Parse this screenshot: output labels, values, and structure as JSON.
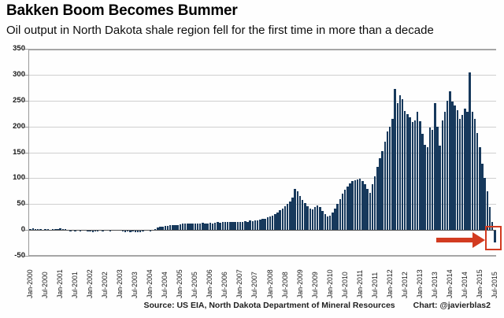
{
  "footer": {
    "source": "Source: US EIA, North Dakota Department of Mineral Resources",
    "credit": "Chart: @javierblas2"
  },
  "chart_data": {
    "type": "bar",
    "title": "Bakken Boom Becomes Bummer",
    "subtitle": "Oil output in North Dakota shale region fell for the first time in more than a decade",
    "xlabel": "",
    "ylabel": "",
    "ylim": [
      -50,
      350
    ],
    "y_ticks": [
      350,
      300,
      250,
      200,
      150,
      100,
      50,
      0,
      -50
    ],
    "grid": true,
    "legend": "none",
    "bar_color": "#17395c",
    "highlight_color": "#d23b20",
    "x_tick_labels": [
      "Jan-2000",
      "Jul-2000",
      "Jan-2001",
      "Jul-2001",
      "Jan-2002",
      "Jul-2002",
      "Jan-2003",
      "Jul-2003",
      "Jan-2004",
      "Jul-2004",
      "Jan-2005",
      "Jul-2005",
      "Jan-2006",
      "Jul-2006",
      "Jan-2007",
      "Jul-2007",
      "Jan-2008",
      "Jul-2008",
      "Jan-2009",
      "Jul-2009",
      "Jan-2010",
      "Jul-2010",
      "Jan-2011",
      "Jul-2011",
      "Jan-2012",
      "Jul-2012",
      "Jan-2013",
      "Jul-2013",
      "Jan-2014",
      "Jul-2014",
      "Jan-2015",
      "Jul-2015"
    ],
    "x_tick_every_n_months": 6,
    "series_by_year": [
      {
        "year": 2000,
        "values": [
          2,
          3,
          2,
          1,
          2,
          -1,
          1,
          2,
          -2,
          1,
          2,
          1
        ]
      },
      {
        "year": 2001,
        "values": [
          3,
          2,
          1,
          -2,
          -3,
          -2,
          -3,
          -2,
          -3,
          -2,
          -2,
          -3
        ]
      },
      {
        "year": 2002,
        "values": [
          -3,
          -4,
          -3,
          -3,
          -2,
          -3,
          -2,
          -2,
          -3,
          -2,
          -2,
          -2
        ]
      },
      {
        "year": 2003,
        "values": [
          -2,
          -3,
          -4,
          -3,
          -4,
          -3,
          -4,
          -5,
          -4,
          -3,
          -2,
          -2
        ]
      },
      {
        "year": 2004,
        "values": [
          -3,
          -2,
          2,
          4,
          6,
          7,
          8,
          8,
          9,
          9,
          10,
          10
        ]
      },
      {
        "year": 2005,
        "values": [
          11,
          12,
          12,
          13,
          12,
          12,
          13,
          12,
          13,
          14,
          13,
          13
        ]
      },
      {
        "year": 2006,
        "values": [
          14,
          13,
          14,
          15,
          14,
          15,
          16,
          15,
          16,
          15,
          16,
          15
        ]
      },
      {
        "year": 2007,
        "values": [
          16,
          15,
          17,
          16,
          18,
          17,
          19,
          18,
          20,
          21,
          22,
          24
        ]
      },
      {
        "year": 2008,
        "values": [
          26,
          28,
          31,
          34,
          38,
          42,
          46,
          50,
          55,
          62,
          80,
          74
        ]
      },
      {
        "year": 2009,
        "values": [
          66,
          58,
          52,
          46,
          42,
          40,
          44,
          47,
          44,
          36,
          30,
          26
        ]
      },
      {
        "year": 2010,
        "values": [
          28,
          34,
          42,
          50,
          60,
          70,
          78,
          84,
          90,
          94,
          96,
          97
        ]
      },
      {
        "year": 2011,
        "values": [
          99,
          95,
          88,
          80,
          72,
          89,
          104,
          122,
          139,
          152,
          170,
          190
        ]
      },
      {
        "year": 2012,
        "values": [
          200,
          215,
          272,
          245,
          261,
          252,
          230,
          224,
          217,
          208,
          212,
          228
        ]
      },
      {
        "year": 2013,
        "values": [
          210,
          185,
          165,
          160,
          198,
          194,
          245,
          200,
          163,
          212,
          228,
          250
        ]
      },
      {
        "year": 2014,
        "values": [
          268,
          248,
          240,
          232,
          215,
          222,
          235,
          228,
          305,
          228,
          215,
          188
        ]
      },
      {
        "year": 2015,
        "values": [
          160,
          128,
          100,
          75,
          45,
          15,
          -24
        ]
      }
    ],
    "annotation": {
      "type": "box-and-arrow",
      "target": "last bar (first negative monthly change in more than a decade)",
      "color": "#d23b20"
    }
  }
}
